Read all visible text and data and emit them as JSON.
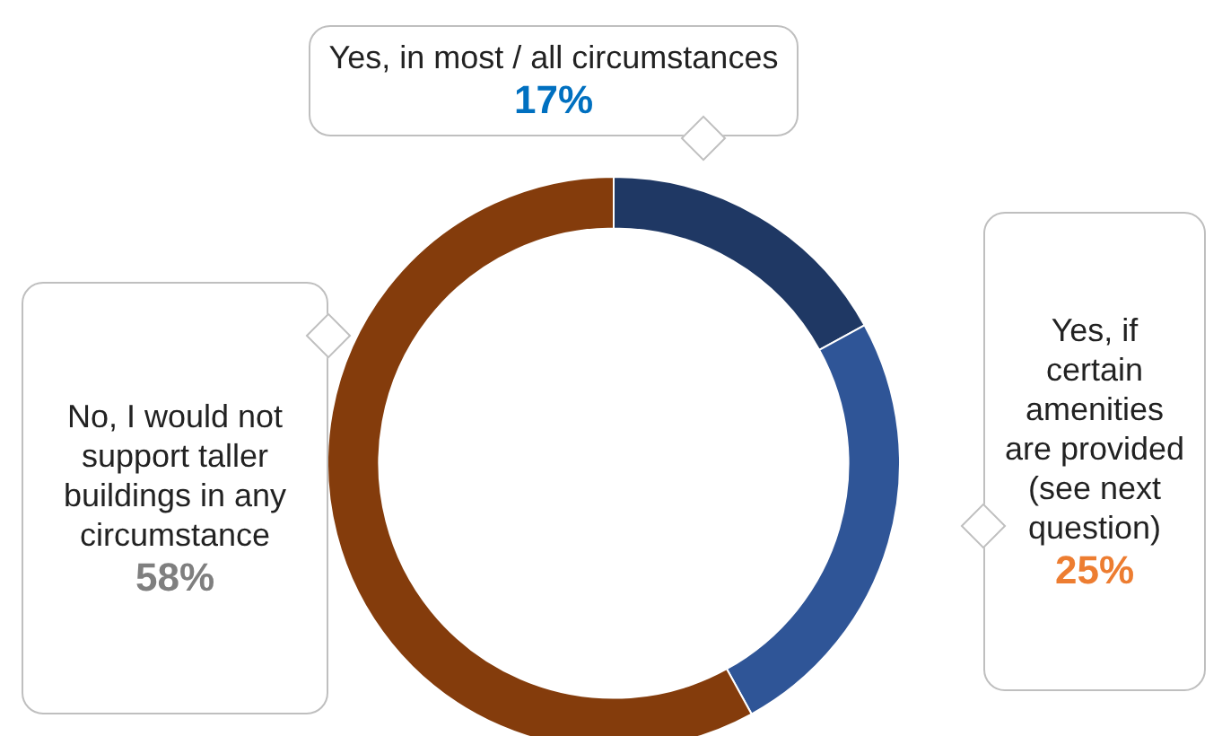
{
  "chart_data": {
    "type": "donut",
    "categories": [
      "Yes, in most / all circumstances",
      "Yes, if certain amenities are provided (see next question)",
      "No, I would not support taller buildings in any circumstance"
    ],
    "values": [
      17,
      25,
      58
    ],
    "colors": [
      "#1f3864",
      "#2f5597",
      "#843c0c"
    ],
    "value_labels": [
      "17%",
      "25%",
      "58%"
    ]
  }
}
